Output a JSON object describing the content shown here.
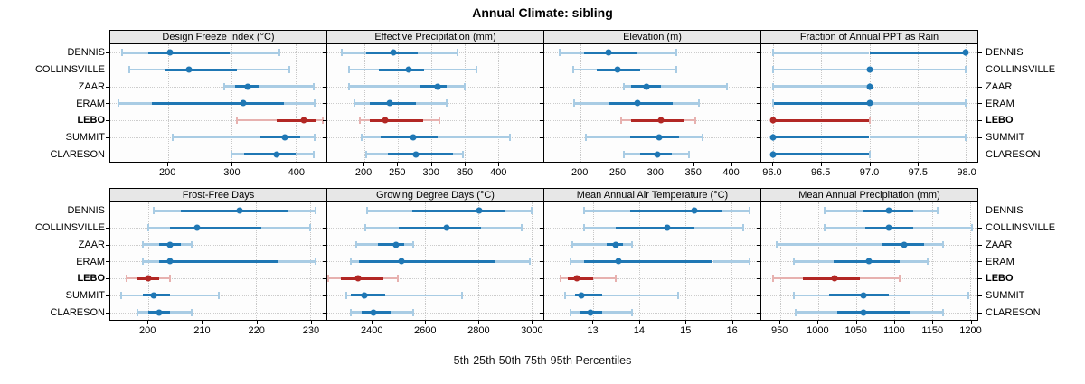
{
  "figure": {
    "title": "Annual Climate: sibling",
    "caption": "5th-25th-50th-75th-95th Percentiles"
  },
  "sites": [
    "DENNIS",
    "COLLINSVILLE",
    "ZAAR",
    "ERAM",
    "LEBO",
    "SUMMIT",
    "CLARESON"
  ],
  "highlight_site": "LEBO",
  "colors": {
    "series_normal": "#1f77b4",
    "series_normal_light": "#a9cce4",
    "series_highlight": "#b22724",
    "series_highlight_light": "#e7b1af",
    "header_bg": "#e7e7e7",
    "grid": "#c8c8c8",
    "border": "#000000"
  },
  "chart_data": {
    "type": "dotplot",
    "subtype": "percentile-whiskers",
    "percentiles": [
      5,
      25,
      50,
      75,
      95
    ],
    "legend_note": "whisker: 5th-95th light, 25th-75th dark, dot at 50th",
    "panels": [
      {
        "row": 0,
        "title": "Design Freeze Index (°C)",
        "xlim": [
          110,
          448
        ],
        "ticks": [
          200,
          300,
          400
        ],
        "tick_labels": [
          "200",
          "300",
          "400"
        ],
        "series": [
          [
            129,
            169,
            204,
            296,
            375
          ],
          [
            140,
            196,
            233,
            308,
            390
          ],
          [
            288,
            305,
            325,
            344,
            428
          ],
          [
            123,
            175,
            318,
            382,
            430
          ],
          [
            308,
            370,
            412,
            432,
            442
          ],
          [
            208,
            345,
            383,
            407,
            430
          ],
          [
            300,
            320,
            370,
            400,
            428
          ]
        ]
      },
      {
        "row": 0,
        "title": "Effective Precipitation (mm)",
        "xlim": [
          145,
          468
        ],
        "ticks": [
          200,
          250,
          300,
          350,
          400
        ],
        "tick_labels": [
          "200",
          "250",
          "300",
          "350",
          "400"
        ],
        "series": [
          [
            167,
            203,
            243,
            280,
            340
          ],
          [
            178,
            222,
            266,
            289,
            368
          ],
          [
            178,
            283,
            310,
            323,
            350
          ],
          [
            185,
            208,
            238,
            277,
            323
          ],
          [
            193,
            208,
            231,
            288,
            312
          ],
          [
            197,
            225,
            273,
            310,
            418
          ],
          [
            203,
            235,
            278,
            333,
            348
          ]
        ]
      },
      {
        "row": 0,
        "title": "Elevation (m)",
        "xlim": [
          152,
          440
        ],
        "ticks": [
          200,
          250,
          300,
          350,
          400
        ],
        "tick_labels": [
          "200",
          "250",
          "300",
          "350",
          "400"
        ],
        "series": [
          [
            172,
            205,
            238,
            275,
            328
          ],
          [
            190,
            222,
            250,
            280,
            328
          ],
          [
            258,
            268,
            288,
            307,
            395
          ],
          [
            192,
            237,
            276,
            323,
            358
          ],
          [
            255,
            268,
            308,
            338,
            353
          ],
          [
            207,
            267,
            305,
            332,
            363
          ],
          [
            258,
            280,
            303,
            322,
            345
          ]
        ]
      },
      {
        "row": 0,
        "title": "Fraction of Annual PPT as Rain",
        "xlim": [
          95.88,
          98.12
        ],
        "ticks": [
          96.0,
          96.5,
          97.0,
          97.5,
          98.0
        ],
        "tick_labels": [
          "96.0",
          "96.5",
          "97.0",
          "97.5",
          "98.0"
        ],
        "series": [
          [
            96,
            97,
            98,
            98,
            98
          ],
          [
            96,
            97,
            97,
            97,
            98
          ],
          [
            96,
            97,
            97,
            97,
            97
          ],
          [
            96,
            96,
            97,
            97,
            98
          ],
          [
            96,
            96,
            96,
            97,
            97
          ],
          [
            96,
            96,
            96,
            97,
            98
          ],
          [
            96,
            96,
            96,
            97,
            97
          ]
        ]
      },
      {
        "row": 1,
        "title": "Frost-Free Days",
        "xlim": [
          193,
          233
        ],
        "ticks": [
          200,
          210,
          220,
          230
        ],
        "tick_labels": [
          "200",
          "210",
          "220",
          "230"
        ],
        "series": [
          [
            201,
            206,
            217,
            226,
            231
          ],
          [
            200,
            204,
            209,
            221,
            230
          ],
          [
            199,
            202,
            204,
            206,
            208
          ],
          [
            199,
            202,
            204,
            224,
            231
          ],
          [
            196,
            198,
            200,
            202,
            204
          ],
          [
            195,
            199,
            201,
            204,
            213
          ],
          [
            198,
            200,
            202,
            204,
            208
          ]
        ]
      },
      {
        "row": 1,
        "title": "Growing Degree Days (°C)",
        "xlim": [
          2230,
          3046
        ],
        "ticks": [
          2400,
          2600,
          2800,
          3000
        ],
        "tick_labels": [
          "2400",
          "2600",
          "2800",
          "3000"
        ],
        "series": [
          [
            2380,
            2550,
            2805,
            2900,
            3000
          ],
          [
            2375,
            2500,
            2680,
            2810,
            2965
          ],
          [
            2340,
            2420,
            2490,
            2520,
            2555
          ],
          [
            2320,
            2350,
            2510,
            2860,
            2995
          ],
          [
            2235,
            2280,
            2345,
            2440,
            2495
          ],
          [
            2300,
            2320,
            2370,
            2450,
            2740
          ],
          [
            2320,
            2360,
            2405,
            2470,
            2555
          ]
        ]
      },
      {
        "row": 1,
        "title": "Mean Annual Air Temperature (°C)",
        "xlim": [
          11.94,
          16.63
        ],
        "ticks": [
          13,
          14,
          15,
          16
        ],
        "tick_labels": [
          "13",
          "14",
          "15",
          "16"
        ],
        "series": [
          [
            12.8,
            13.8,
            15.2,
            15.8,
            16.4
          ],
          [
            12.8,
            13.5,
            14.6,
            15.2,
            16.25
          ],
          [
            12.55,
            13.3,
            13.5,
            13.65,
            13.85
          ],
          [
            12.5,
            12.8,
            13.55,
            15.6,
            16.4
          ],
          [
            12.3,
            12.45,
            12.65,
            13.0,
            13.5
          ],
          [
            12.4,
            12.6,
            12.75,
            13.2,
            14.85
          ],
          [
            12.5,
            12.7,
            12.95,
            13.2,
            13.85
          ]
        ]
      },
      {
        "row": 1,
        "title": "Mean Annual Precipitation (mm)",
        "xlim": [
          925,
          1210
        ],
        "ticks": [
          950,
          1000,
          1050,
          1100,
          1150,
          1200
        ],
        "tick_labels": [
          "950",
          "1000",
          "1050",
          "1100",
          "1150",
          "1200"
        ],
        "series": [
          [
            1008,
            1060,
            1093,
            1125,
            1158
          ],
          [
            1008,
            1062,
            1093,
            1125,
            1203
          ],
          [
            945,
            1085,
            1113,
            1140,
            1165
          ],
          [
            968,
            1020,
            1067,
            1108,
            1145
          ],
          [
            940,
            980,
            1022,
            1055,
            1108
          ],
          [
            968,
            1015,
            1060,
            1093,
            1198
          ],
          [
            970,
            1025,
            1060,
            1122,
            1165
          ]
        ]
      }
    ]
  }
}
